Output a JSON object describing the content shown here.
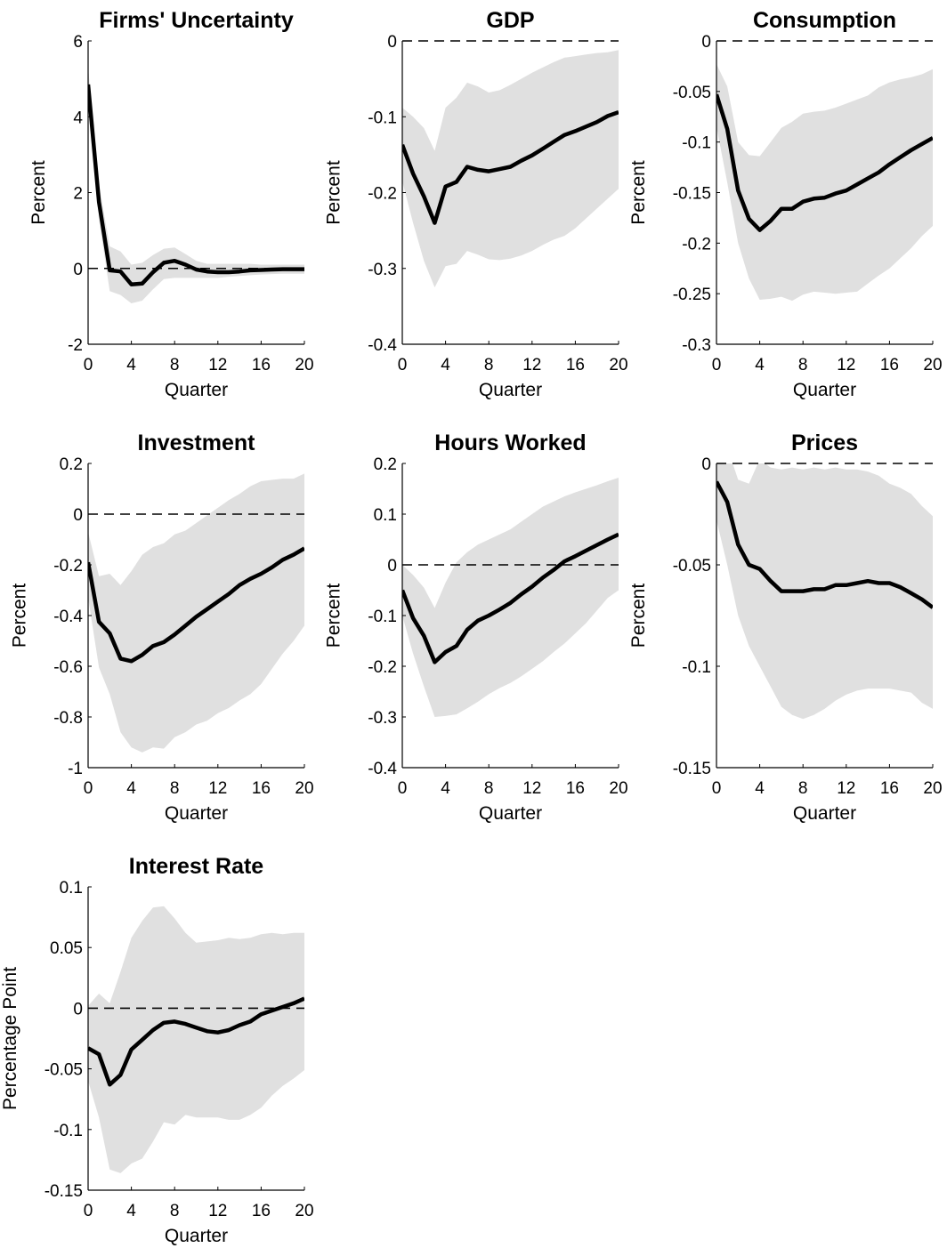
{
  "chart_data": [
    {
      "type": "line",
      "title": "Firms' Uncertainty",
      "xlabel": "Quarter",
      "ylabel": "Percent",
      "xlim": [
        0,
        20
      ],
      "ylim": [
        -2,
        6
      ],
      "xticks": [
        0,
        4,
        8,
        12,
        16,
        20
      ],
      "yticks": [
        -2,
        0,
        2,
        4,
        6
      ],
      "yticklabels": [
        "-2",
        "0",
        "2",
        "4",
        "6"
      ],
      "zero_line": true,
      "band_color": "#e0e0e0",
      "line_color": "#000000",
      "x": [
        0,
        1,
        2,
        3,
        4,
        5,
        6,
        7,
        8,
        9,
        10,
        11,
        12,
        13,
        14,
        15,
        16,
        17,
        18,
        19,
        20
      ],
      "series": [
        {
          "role": "median",
          "values": [
            4.85,
            1.75,
            -0.05,
            -0.08,
            -0.42,
            -0.4,
            -0.1,
            0.15,
            0.2,
            0.1,
            -0.03,
            -0.08,
            -0.1,
            -0.1,
            -0.08,
            -0.05,
            -0.04,
            -0.03,
            -0.02,
            -0.02,
            -0.02
          ]
        },
        {
          "role": "upper",
          "values": [
            5.3,
            2.2,
            0.58,
            0.45,
            0.1,
            0.15,
            0.35,
            0.52,
            0.55,
            0.38,
            0.2,
            0.12,
            0.12,
            0.12,
            0.12,
            0.12,
            0.1,
            0.1,
            0.1,
            0.1,
            0.1
          ]
        },
        {
          "role": "lower",
          "values": [
            4.4,
            1.3,
            -0.6,
            -0.7,
            -0.92,
            -0.85,
            -0.55,
            -0.28,
            -0.25,
            -0.25,
            -0.25,
            -0.25,
            -0.25,
            -0.22,
            -0.2,
            -0.18,
            -0.16,
            -0.15,
            -0.14,
            -0.14,
            -0.14
          ]
        }
      ]
    },
    {
      "type": "line",
      "title": "GDP",
      "xlabel": "Quarter",
      "ylabel": "Percent",
      "xlim": [
        0,
        20
      ],
      "ylim": [
        -0.4,
        0
      ],
      "xticks": [
        0,
        4,
        8,
        12,
        16,
        20
      ],
      "yticks": [
        -0.4,
        -0.3,
        -0.2,
        -0.1,
        0
      ],
      "yticklabels": [
        "-0.4",
        "-0.3",
        "-0.2",
        "-0.1",
        "0"
      ],
      "zero_line": true,
      "band_color": "#e0e0e0",
      "line_color": "#000000",
      "x": [
        0,
        1,
        2,
        3,
        4,
        5,
        6,
        7,
        8,
        9,
        10,
        11,
        12,
        13,
        14,
        15,
        16,
        17,
        18,
        19,
        20
      ],
      "series": [
        {
          "role": "median",
          "values": [
            -0.137,
            -0.175,
            -0.205,
            -0.24,
            -0.192,
            -0.186,
            -0.166,
            -0.17,
            -0.172,
            -0.169,
            -0.166,
            -0.158,
            -0.151,
            -0.142,
            -0.133,
            -0.124,
            -0.119,
            -0.113,
            -0.107,
            -0.099,
            -0.094
          ]
        },
        {
          "role": "upper",
          "values": [
            -0.088,
            -0.1,
            -0.115,
            -0.145,
            -0.088,
            -0.075,
            -0.055,
            -0.06,
            -0.068,
            -0.065,
            -0.058,
            -0.05,
            -0.042,
            -0.035,
            -0.028,
            -0.022,
            -0.02,
            -0.018,
            -0.016,
            -0.015,
            -0.012
          ]
        },
        {
          "role": "lower",
          "values": [
            -0.185,
            -0.24,
            -0.29,
            -0.325,
            -0.297,
            -0.294,
            -0.277,
            -0.282,
            -0.288,
            -0.289,
            -0.287,
            -0.283,
            -0.277,
            -0.269,
            -0.262,
            -0.257,
            -0.247,
            -0.234,
            -0.221,
            -0.208,
            -0.195
          ]
        }
      ]
    },
    {
      "type": "line",
      "title": "Consumption",
      "xlabel": "Quarter",
      "ylabel": "Percent",
      "xlim": [
        0,
        20
      ],
      "ylim": [
        -0.3,
        0
      ],
      "xticks": [
        0,
        4,
        8,
        12,
        16,
        20
      ],
      "yticks": [
        -0.3,
        -0.25,
        -0.2,
        -0.15,
        -0.1,
        -0.05,
        0
      ],
      "yticklabels": [
        "-0.3",
        "-0.25",
        "-0.2",
        "-0.15",
        "-0.1",
        "-0.05",
        "0"
      ],
      "zero_line": true,
      "band_color": "#e0e0e0",
      "line_color": "#000000",
      "x": [
        0,
        1,
        2,
        3,
        4,
        5,
        6,
        7,
        8,
        9,
        10,
        11,
        12,
        13,
        14,
        15,
        16,
        17,
        18,
        19,
        20
      ],
      "series": [
        {
          "role": "median",
          "values": [
            -0.053,
            -0.087,
            -0.148,
            -0.176,
            -0.187,
            -0.178,
            -0.166,
            -0.166,
            -0.159,
            -0.156,
            -0.155,
            -0.151,
            -0.148,
            -0.142,
            -0.136,
            -0.13,
            -0.122,
            -0.115,
            -0.108,
            -0.102,
            -0.096
          ]
        },
        {
          "role": "upper",
          "values": [
            -0.023,
            -0.045,
            -0.1,
            -0.113,
            -0.114,
            -0.1,
            -0.086,
            -0.08,
            -0.072,
            -0.07,
            -0.069,
            -0.066,
            -0.062,
            -0.058,
            -0.054,
            -0.046,
            -0.041,
            -0.038,
            -0.036,
            -0.033,
            -0.028
          ]
        },
        {
          "role": "lower",
          "values": [
            -0.085,
            -0.14,
            -0.2,
            -0.235,
            -0.256,
            -0.255,
            -0.253,
            -0.257,
            -0.251,
            -0.248,
            -0.249,
            -0.25,
            -0.249,
            -0.248,
            -0.24,
            -0.232,
            -0.225,
            -0.215,
            -0.205,
            -0.193,
            -0.183
          ]
        }
      ]
    },
    {
      "type": "line",
      "title": "Investment",
      "xlabel": "Quarter",
      "ylabel": "Percent",
      "xlim": [
        0,
        20
      ],
      "ylim": [
        -1,
        0.2
      ],
      "xticks": [
        0,
        4,
        8,
        12,
        16,
        20
      ],
      "yticks": [
        -1,
        -0.8,
        -0.6,
        -0.4,
        -0.2,
        0,
        0.2
      ],
      "yticklabels": [
        "-1",
        "-0.8",
        "-0.6",
        "-0.4",
        "-0.2",
        "0",
        "0.2"
      ],
      "zero_line": true,
      "band_color": "#e0e0e0",
      "line_color": "#000000",
      "x": [
        0,
        1,
        2,
        3,
        4,
        5,
        6,
        7,
        8,
        9,
        10,
        11,
        12,
        13,
        14,
        15,
        16,
        17,
        18,
        19,
        20
      ],
      "series": [
        {
          "role": "median",
          "values": [
            -0.19,
            -0.425,
            -0.47,
            -0.57,
            -0.58,
            -0.555,
            -0.52,
            -0.505,
            -0.475,
            -0.44,
            -0.405,
            -0.375,
            -0.345,
            -0.315,
            -0.28,
            -0.255,
            -0.235,
            -0.21,
            -0.18,
            -0.16,
            -0.135
          ]
        },
        {
          "role": "upper",
          "values": [
            -0.07,
            -0.245,
            -0.235,
            -0.28,
            -0.225,
            -0.16,
            -0.13,
            -0.115,
            -0.08,
            -0.065,
            -0.035,
            -0.005,
            0.025,
            0.055,
            0.08,
            0.11,
            0.13,
            0.135,
            0.14,
            0.14,
            0.16
          ]
        },
        {
          "role": "lower",
          "values": [
            -0.33,
            -0.605,
            -0.71,
            -0.86,
            -0.92,
            -0.94,
            -0.92,
            -0.925,
            -0.88,
            -0.86,
            -0.83,
            -0.815,
            -0.785,
            -0.765,
            -0.735,
            -0.71,
            -0.67,
            -0.61,
            -0.55,
            -0.5,
            -0.44
          ]
        }
      ]
    },
    {
      "type": "line",
      "title": "Hours Worked",
      "xlabel": "Quarter",
      "ylabel": "Percent",
      "xlim": [
        0,
        20
      ],
      "ylim": [
        -0.4,
        0.2
      ],
      "xticks": [
        0,
        4,
        8,
        12,
        16,
        20
      ],
      "yticks": [
        -0.4,
        -0.3,
        -0.2,
        -0.1,
        0,
        0.1,
        0.2
      ],
      "yticklabels": [
        "-0.4",
        "-0.3",
        "-0.2",
        "-0.1",
        "0",
        "0.1",
        "0.2"
      ],
      "zero_line": true,
      "band_color": "#e0e0e0",
      "line_color": "#000000",
      "x": [
        0,
        1,
        2,
        3,
        4,
        5,
        6,
        7,
        8,
        9,
        10,
        11,
        12,
        13,
        14,
        15,
        16,
        17,
        18,
        19,
        20
      ],
      "series": [
        {
          "role": "median",
          "values": [
            -0.05,
            -0.105,
            -0.14,
            -0.192,
            -0.172,
            -0.16,
            -0.128,
            -0.11,
            -0.1,
            -0.088,
            -0.075,
            -0.058,
            -0.043,
            -0.025,
            -0.01,
            0.007,
            0.017,
            0.028,
            0.039,
            0.05,
            0.06
          ]
        },
        {
          "role": "upper",
          "values": [
            0.0,
            -0.02,
            -0.045,
            -0.085,
            -0.035,
            0.005,
            0.025,
            0.04,
            0.05,
            0.06,
            0.07,
            0.085,
            0.1,
            0.115,
            0.125,
            0.135,
            0.143,
            0.15,
            0.157,
            0.165,
            0.172
          ]
        },
        {
          "role": "lower",
          "values": [
            -0.1,
            -0.175,
            -0.24,
            -0.3,
            -0.298,
            -0.295,
            -0.283,
            -0.27,
            -0.255,
            -0.243,
            -0.233,
            -0.22,
            -0.205,
            -0.19,
            -0.172,
            -0.155,
            -0.135,
            -0.115,
            -0.09,
            -0.065,
            -0.05
          ]
        }
      ]
    },
    {
      "type": "line",
      "title": "Prices",
      "xlabel": "Quarter",
      "ylabel": "Percent",
      "xlim": [
        0,
        20
      ],
      "ylim": [
        -0.15,
        0
      ],
      "xticks": [
        0,
        4,
        8,
        12,
        16,
        20
      ],
      "yticks": [
        -0.15,
        -0.1,
        -0.05,
        0
      ],
      "yticklabels": [
        "-0.15",
        "-0.1",
        "-0.05",
        "0"
      ],
      "zero_line": true,
      "band_color": "#e0e0e0",
      "line_color": "#000000",
      "x": [
        0,
        1,
        2,
        3,
        4,
        5,
        6,
        7,
        8,
        9,
        10,
        11,
        12,
        13,
        14,
        15,
        16,
        17,
        18,
        19,
        20
      ],
      "series": [
        {
          "role": "median",
          "values": [
            -0.009,
            -0.019,
            -0.04,
            -0.05,
            -0.052,
            -0.058,
            -0.063,
            -0.063,
            -0.063,
            -0.062,
            -0.062,
            -0.06,
            -0.06,
            -0.059,
            -0.058,
            -0.059,
            -0.059,
            -0.061,
            -0.064,
            -0.067,
            -0.071
          ]
        },
        {
          "role": "upper",
          "values": [
            0.01,
            0.008,
            -0.008,
            -0.01,
            0.002,
            -0.002,
            -0.003,
            -0.002,
            -0.003,
            -0.002,
            -0.003,
            -0.002,
            -0.003,
            -0.003,
            -0.004,
            -0.006,
            -0.01,
            -0.012,
            -0.015,
            -0.021,
            -0.026
          ]
        },
        {
          "role": "lower",
          "values": [
            -0.028,
            -0.05,
            -0.075,
            -0.09,
            -0.1,
            -0.11,
            -0.12,
            -0.124,
            -0.126,
            -0.124,
            -0.121,
            -0.117,
            -0.114,
            -0.112,
            -0.111,
            -0.111,
            -0.111,
            -0.112,
            -0.113,
            -0.118,
            -0.121
          ]
        }
      ]
    },
    {
      "type": "line",
      "title": "Interest Rate",
      "xlabel": "Quarter",
      "ylabel": "Percentage Point",
      "xlim": [
        0,
        20
      ],
      "ylim": [
        -0.15,
        0.1
      ],
      "xticks": [
        0,
        4,
        8,
        12,
        16,
        20
      ],
      "yticks": [
        -0.15,
        -0.1,
        -0.05,
        0,
        0.05,
        0.1
      ],
      "yticklabels": [
        "-0.15",
        "-0.1",
        "-0.05",
        "0",
        "0.05",
        "0.1"
      ],
      "zero_line": true,
      "band_color": "#e0e0e0",
      "line_color": "#000000",
      "x": [
        0,
        1,
        2,
        3,
        4,
        5,
        6,
        7,
        8,
        9,
        10,
        11,
        12,
        13,
        14,
        15,
        16,
        17,
        18,
        19,
        20
      ],
      "series": [
        {
          "role": "median",
          "values": [
            -0.033,
            -0.038,
            -0.063,
            -0.055,
            -0.034,
            -0.026,
            -0.018,
            -0.012,
            -0.011,
            -0.013,
            -0.016,
            -0.019,
            -0.02,
            -0.018,
            -0.014,
            -0.011,
            -0.005,
            -0.002,
            0.001,
            0.004,
            0.008
          ]
        },
        {
          "role": "upper",
          "values": [
            0.002,
            0.012,
            0.004,
            0.03,
            0.058,
            0.072,
            0.083,
            0.084,
            0.074,
            0.062,
            0.054,
            0.055,
            0.056,
            0.058,
            0.057,
            0.058,
            0.061,
            0.062,
            0.061,
            0.062,
            0.062
          ]
        },
        {
          "role": "lower",
          "values": [
            -0.06,
            -0.09,
            -0.133,
            -0.136,
            -0.128,
            -0.124,
            -0.11,
            -0.094,
            -0.096,
            -0.088,
            -0.09,
            -0.09,
            -0.09,
            -0.092,
            -0.092,
            -0.088,
            -0.082,
            -0.072,
            -0.064,
            -0.058,
            -0.051
          ]
        }
      ]
    }
  ]
}
